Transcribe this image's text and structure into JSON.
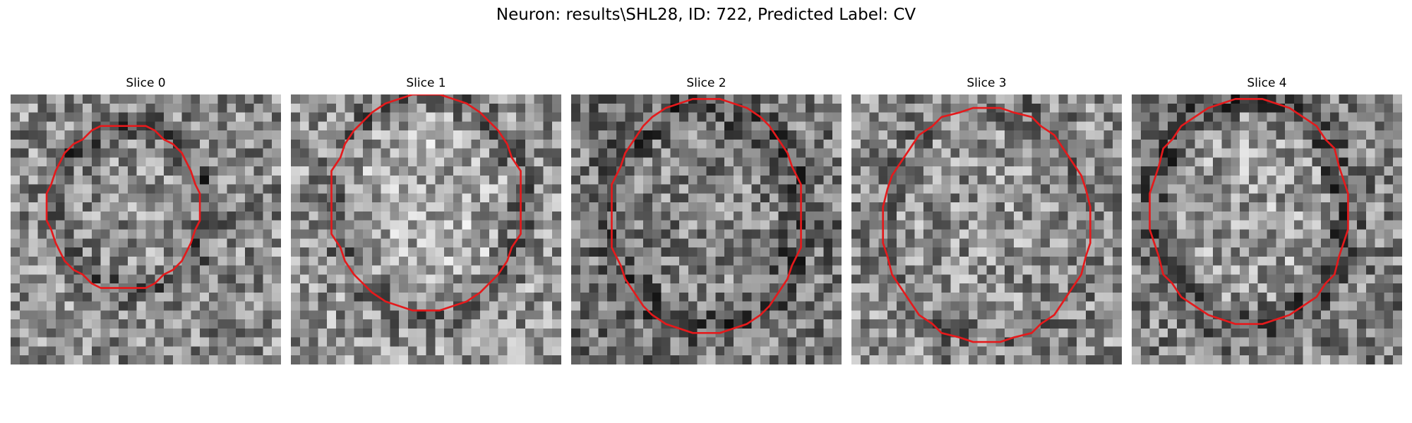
{
  "figure": {
    "title": "Neuron: results\\SHL28, ID: 722, Predicted Label: CV",
    "overlay_color": "#e41a1c",
    "colormap": "gray"
  },
  "panels": [
    {
      "title": "Slice 0"
    },
    {
      "title": "Slice 1"
    },
    {
      "title": "Slice 2"
    },
    {
      "title": "Slice 3"
    },
    {
      "title": "Slice 4"
    }
  ]
}
